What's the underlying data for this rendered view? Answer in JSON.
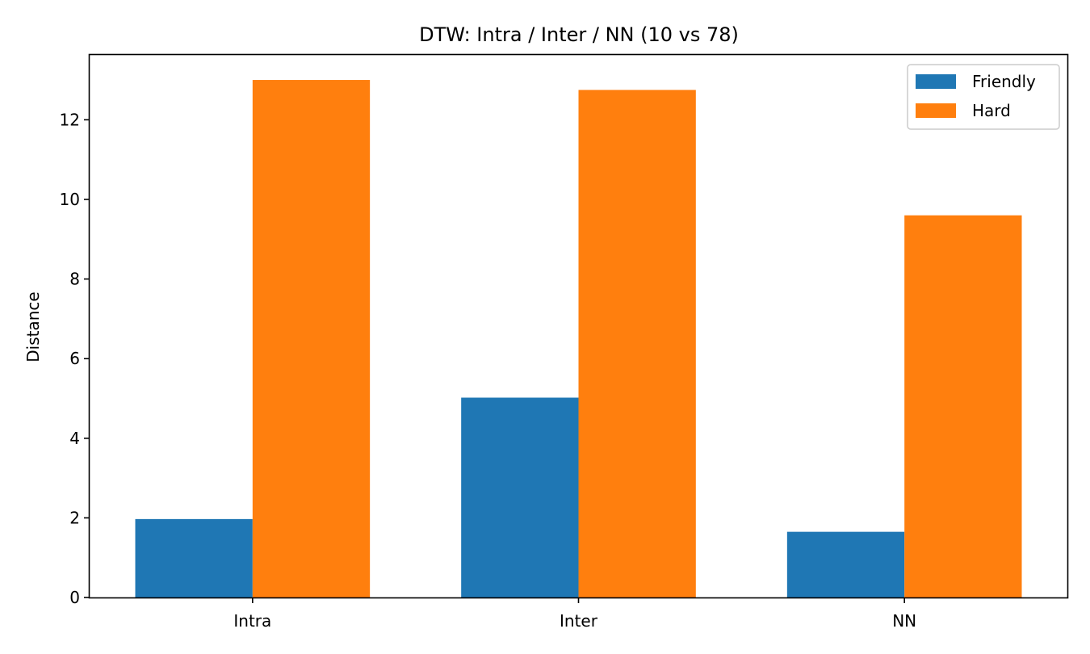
{
  "chart_data": {
    "type": "bar",
    "title": "DTW: Intra / Inter / NN (10 vs 78)",
    "xlabel": "",
    "ylabel": "Distance",
    "categories": [
      "Intra",
      "Inter",
      "NN"
    ],
    "series": [
      {
        "name": "Friendly",
        "color": "#1f77b4",
        "values": [
          1.97,
          5.02,
          1.65
        ]
      },
      {
        "name": "Hard",
        "color": "#ff7f0e",
        "values": [
          13.0,
          12.75,
          9.6
        ]
      }
    ],
    "ylim": [
      0,
      13.65
    ],
    "yticks": [
      0,
      2,
      4,
      6,
      8,
      10,
      12
    ],
    "grid": false,
    "legend_position": "top-right"
  }
}
